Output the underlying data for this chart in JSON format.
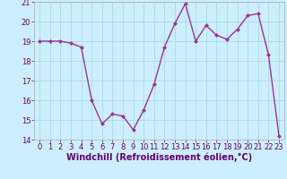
{
  "x": [
    0,
    1,
    2,
    3,
    4,
    5,
    6,
    7,
    8,
    9,
    10,
    11,
    12,
    13,
    14,
    15,
    16,
    17,
    18,
    19,
    20,
    21,
    22,
    23
  ],
  "y": [
    19.0,
    19.0,
    19.0,
    18.9,
    18.7,
    16.0,
    14.8,
    15.3,
    15.2,
    14.5,
    15.5,
    16.8,
    18.7,
    19.9,
    20.9,
    19.0,
    19.8,
    19.3,
    19.1,
    19.6,
    20.3,
    20.4,
    18.3,
    14.2
  ],
  "line_color": "#993399",
  "marker": "D",
  "markersize": 2.0,
  "linewidth": 1.0,
  "bg_color": "#cceeff",
  "grid_color": "#aadddd",
  "xlabel": "Windchill (Refroidissement éolien,°C)",
  "xlabel_fontsize": 7,
  "tick_fontsize": 6,
  "ylim": [
    14,
    21
  ],
  "xlim": [
    -0.5,
    23.5
  ],
  "yticks": [
    14,
    15,
    16,
    17,
    18,
    19,
    20,
    21
  ],
  "xticks": [
    0,
    1,
    2,
    3,
    4,
    5,
    6,
    7,
    8,
    9,
    10,
    11,
    12,
    13,
    14,
    15,
    16,
    17,
    18,
    19,
    20,
    21,
    22,
    23
  ]
}
